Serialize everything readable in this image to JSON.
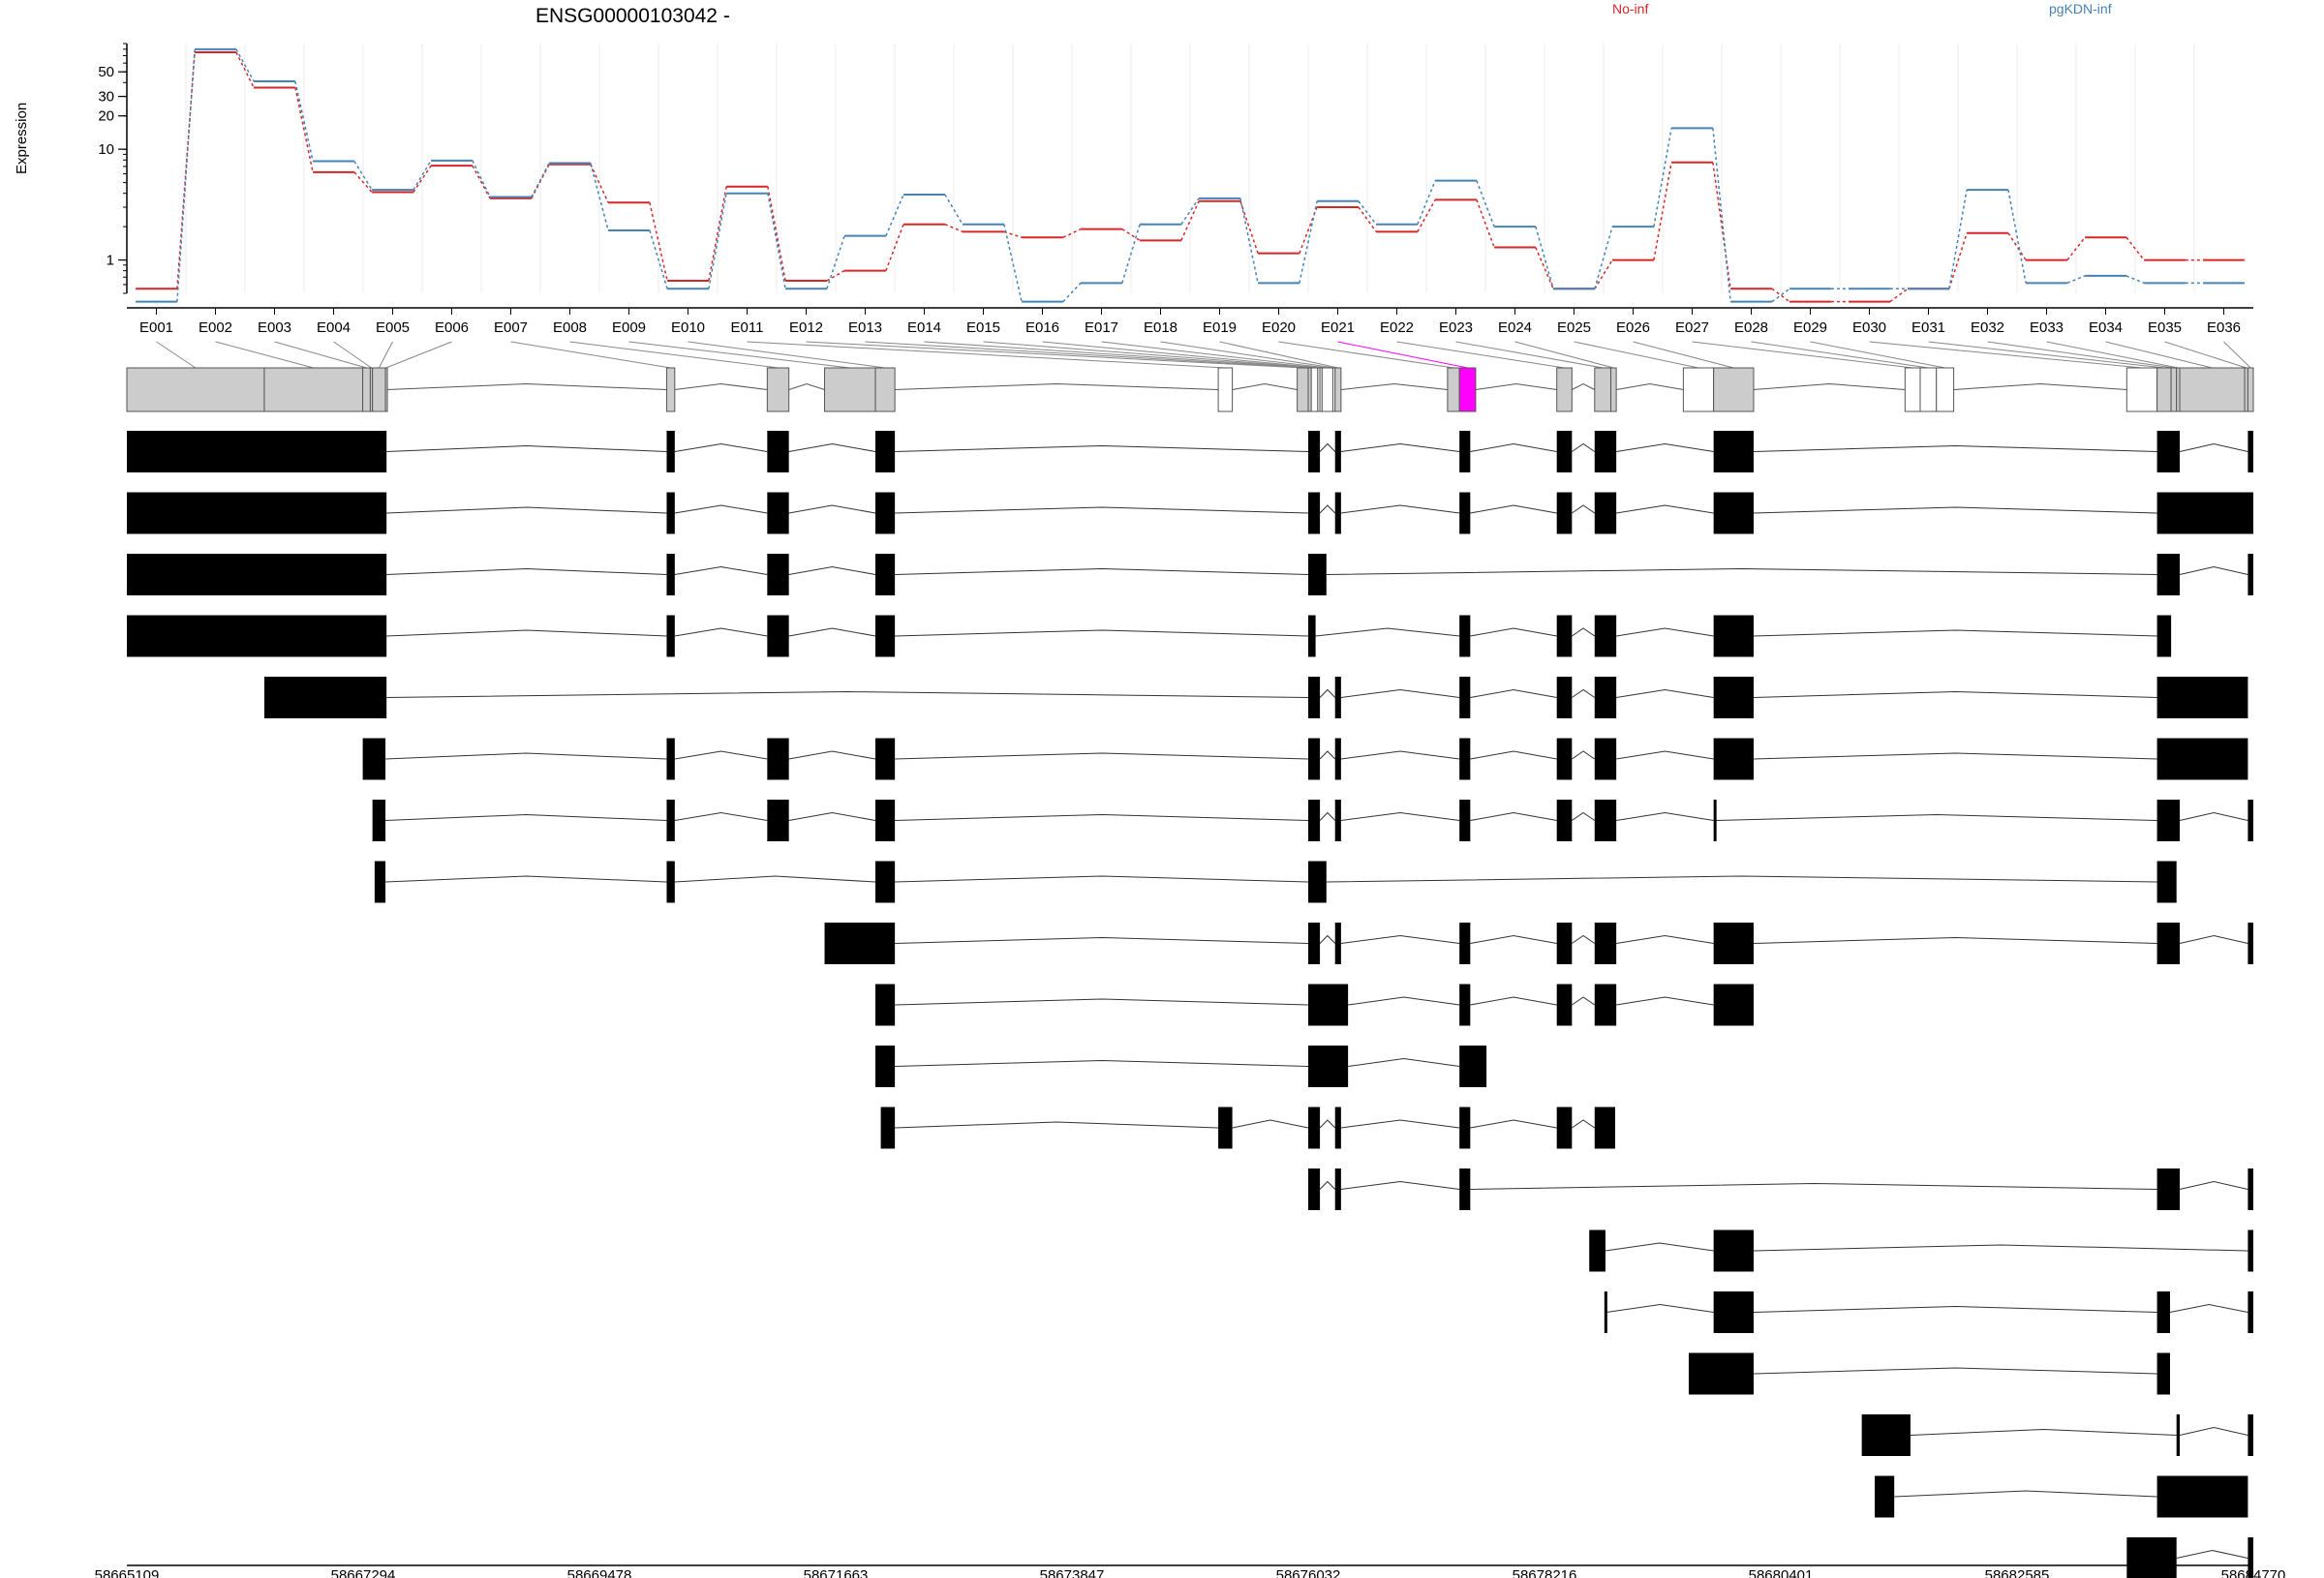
{
  "chart_data": {
    "type": "line",
    "title": "ENSG00000103042 -",
    "ylabel": "Expression",
    "xlabel": "",
    "y_scale": "log",
    "ylim": [
      0.5,
      90
    ],
    "y_ticks": [
      1,
      10,
      20,
      30,
      50
    ],
    "grid": "vertical",
    "legend_position": "top",
    "categories": [
      "E001",
      "E002",
      "E003",
      "E004",
      "E005",
      "E006",
      "E007",
      "E008",
      "E009",
      "E010",
      "E011",
      "E012",
      "E013",
      "E014",
      "E015",
      "E016",
      "E017",
      "E018",
      "E019",
      "E020",
      "E021",
      "E022",
      "E023",
      "E024",
      "E025",
      "E026",
      "E027",
      "E028",
      "E029",
      "E030",
      "E031",
      "E032",
      "E033",
      "E034",
      "E035",
      "E036"
    ],
    "series": [
      {
        "name": "No-inf",
        "color": "#d62728",
        "values": [
          0.55,
          75,
          36,
          6.2,
          4.1,
          7.1,
          3.6,
          7.3,
          3.3,
          0.65,
          4.6,
          0.65,
          0.8,
          2.1,
          1.8,
          1.6,
          1.9,
          1.5,
          3.4,
          1.15,
          3.0,
          1.8,
          3.5,
          1.3,
          0.55,
          1.0,
          7.6,
          0.55,
          0.42,
          0.42,
          0.55,
          1.75,
          1.0,
          1.6,
          1.0,
          1.0
        ]
      },
      {
        "name": "pgKDN-inf",
        "color": "#4682b4",
        "values": [
          0.42,
          80,
          41,
          7.8,
          4.3,
          7.9,
          3.7,
          7.5,
          1.85,
          0.55,
          4.0,
          0.55,
          1.65,
          3.9,
          2.1,
          0.42,
          0.62,
          2.1,
          3.6,
          0.62,
          3.4,
          2.1,
          5.2,
          2.0,
          0.55,
          2.0,
          15.5,
          0.42,
          0.55,
          0.55,
          0.55,
          4.3,
          0.62,
          0.72,
          0.62,
          0.62
        ]
      }
    ],
    "genomic_axis": {
      "range": [
        58665109,
        58684770
      ],
      "tick_labels": [
        "58665109",
        "58667294",
        "58669478",
        "58671663",
        "58673847",
        "58676032",
        "58678216",
        "58680401",
        "58682585",
        "58684770"
      ]
    },
    "exons": [
      {
        "id": "E001",
        "start": 58665109,
        "end": 58666380,
        "coding": true
      },
      {
        "id": "E002",
        "start": 58666380,
        "end": 58667290,
        "coding": true
      },
      {
        "id": "E003",
        "start": 58667290,
        "end": 58667360,
        "coding": true
      },
      {
        "id": "E004",
        "start": 58667360,
        "end": 58667380,
        "coding": true
      },
      {
        "id": "E005",
        "start": 58667380,
        "end": 58667500,
        "coding": true
      },
      {
        "id": "E006",
        "start": 58667500,
        "end": 58667510,
        "coding": true
      },
      {
        "id": "E007",
        "start": 58670100,
        "end": 58670175,
        "coding": true
      },
      {
        "id": "E008",
        "start": 58671030,
        "end": 58671230,
        "coding": true
      },
      {
        "id": "E009",
        "start": 58671560,
        "end": 58672030,
        "coding": true
      },
      {
        "id": "E010",
        "start": 58672030,
        "end": 58672210,
        "coding": true
      },
      {
        "id": "E011",
        "start": 58675200,
        "end": 58675330,
        "coding": false
      },
      {
        "id": "E012",
        "start": 58675930,
        "end": 58676032,
        "coding": true
      },
      {
        "id": "E013",
        "start": 58676032,
        "end": 58676060,
        "coding": true
      },
      {
        "id": "E014",
        "start": 58676060,
        "end": 58676120,
        "coding": false
      },
      {
        "id": "E015",
        "start": 58676120,
        "end": 58676140,
        "coding": false
      },
      {
        "id": "E016",
        "start": 58676140,
        "end": 58676160,
        "coding": false
      },
      {
        "id": "E017",
        "start": 58676160,
        "end": 58676260,
        "coding": false
      },
      {
        "id": "E018",
        "start": 58676260,
        "end": 58676280,
        "coding": false
      },
      {
        "id": "E019",
        "start": 58676280,
        "end": 58676335,
        "coding": true
      },
      {
        "id": "E020",
        "start": 58677320,
        "end": 58677430,
        "coding": true
      },
      {
        "id": "E021",
        "start": 58677430,
        "end": 58677580,
        "coding": true
      },
      {
        "id": "E022",
        "start": 58678330,
        "end": 58678470,
        "coding": true
      },
      {
        "id": "E023",
        "start": 58678680,
        "end": 58678830,
        "coding": true
      },
      {
        "id": "E024",
        "start": 58678830,
        "end": 58678880,
        "coding": true
      },
      {
        "id": "E025",
        "start": 58679500,
        "end": 58679780,
        "coding": false
      },
      {
        "id": "E026",
        "start": 58679780,
        "end": 58680150,
        "coding": true
      },
      {
        "id": "E027",
        "start": 58681550,
        "end": 58681690,
        "coding": false
      },
      {
        "id": "E028",
        "start": 58681690,
        "end": 58681840,
        "coding": false
      },
      {
        "id": "E029",
        "start": 58681840,
        "end": 58682000,
        "coding": false
      },
      {
        "id": "E030",
        "start": 58683600,
        "end": 58683880,
        "coding": false
      },
      {
        "id": "E031",
        "start": 58683880,
        "end": 58684010,
        "coding": true
      },
      {
        "id": "E032",
        "start": 58684010,
        "end": 58684060,
        "coding": true
      },
      {
        "id": "E033",
        "start": 58684060,
        "end": 58684090,
        "coding": true
      },
      {
        "id": "E034",
        "start": 58684090,
        "end": 58684690,
        "coding": true
      },
      {
        "id": "E035",
        "start": 58684690,
        "end": 58684720,
        "coding": true
      },
      {
        "id": "E036",
        "start": 58684720,
        "end": 58684770,
        "coding": true
      }
    ],
    "highlighted_exon": "E021",
    "highlight_color": "#ff00ff",
    "transcripts": [
      {
        "exons": [
          [
            58665109,
            58667510
          ],
          [
            58670100,
            58670175
          ],
          [
            58671030,
            58671230
          ],
          [
            58672030,
            58672210
          ],
          [
            58676032,
            58676140
          ],
          [
            58676280,
            58676335
          ],
          [
            58677430,
            58677530
          ],
          [
            58678330,
            58678470
          ],
          [
            58678680,
            58678880
          ],
          [
            58679780,
            58680150
          ],
          [
            58683880,
            58684090
          ],
          [
            58684720,
            58684770
          ]
        ]
      },
      {
        "exons": [
          [
            58665109,
            58667510
          ],
          [
            58670100,
            58670175
          ],
          [
            58671030,
            58671230
          ],
          [
            58672030,
            58672210
          ],
          [
            58676032,
            58676140
          ],
          [
            58676280,
            58676335
          ],
          [
            58677430,
            58677530
          ],
          [
            58678330,
            58678470
          ],
          [
            58678680,
            58678880
          ],
          [
            58679780,
            58680150
          ],
          [
            58683880,
            58684770
          ]
        ]
      },
      {
        "exons": [
          [
            58665109,
            58667510
          ],
          [
            58670100,
            58670175
          ],
          [
            58671030,
            58671230
          ],
          [
            58672030,
            58672210
          ],
          [
            58676032,
            58676200
          ],
          [
            58683880,
            58684090
          ],
          [
            58684720,
            58684770
          ]
        ]
      },
      {
        "exons": [
          [
            58665109,
            58667510
          ],
          [
            58670100,
            58670175
          ],
          [
            58671030,
            58671230
          ],
          [
            58672030,
            58672210
          ],
          [
            58676032,
            58676100
          ],
          [
            58677430,
            58677530
          ],
          [
            58678330,
            58678470
          ],
          [
            58678680,
            58678880
          ],
          [
            58679780,
            58680150
          ],
          [
            58683880,
            58684010
          ]
        ]
      },
      {
        "exons": [
          [
            58666380,
            58667510
          ],
          [
            58676032,
            58676140
          ],
          [
            58676280,
            58676335
          ],
          [
            58677430,
            58677530
          ],
          [
            58678330,
            58678470
          ],
          [
            58678680,
            58678880
          ],
          [
            58679780,
            58680150
          ],
          [
            58683880,
            58684720
          ]
        ]
      },
      {
        "exons": [
          [
            58667290,
            58667500
          ],
          [
            58670100,
            58670175
          ],
          [
            58671030,
            58671230
          ],
          [
            58672030,
            58672210
          ],
          [
            58676032,
            58676140
          ],
          [
            58676280,
            58676335
          ],
          [
            58677430,
            58677530
          ],
          [
            58678330,
            58678470
          ],
          [
            58678680,
            58678880
          ],
          [
            58679780,
            58680150
          ],
          [
            58683880,
            58684720
          ]
        ]
      },
      {
        "exons": [
          [
            58667380,
            58667500
          ],
          [
            58670100,
            58670175
          ],
          [
            58671030,
            58671230
          ],
          [
            58672030,
            58672210
          ],
          [
            58676032,
            58676140
          ],
          [
            58676280,
            58676335
          ],
          [
            58677430,
            58677530
          ],
          [
            58678330,
            58678470
          ],
          [
            58678680,
            58678880
          ],
          [
            58679780,
            58679800
          ],
          [
            58683880,
            58684090
          ],
          [
            58684720,
            58684770
          ]
        ]
      },
      {
        "exons": [
          [
            58667400,
            58667500
          ],
          [
            58670100,
            58670175
          ],
          [
            58672030,
            58672210
          ],
          [
            58676032,
            58676200
          ],
          [
            58683880,
            58684060
          ]
        ]
      },
      {
        "exons": [
          [
            58671560,
            58672210
          ],
          [
            58676032,
            58676140
          ],
          [
            58676280,
            58676335
          ],
          [
            58677430,
            58677530
          ],
          [
            58678330,
            58678470
          ],
          [
            58678680,
            58678880
          ],
          [
            58679780,
            58680150
          ],
          [
            58683880,
            58684090
          ],
          [
            58684720,
            58684770
          ]
        ]
      },
      {
        "exons": [
          [
            58672030,
            58672210
          ],
          [
            58676032,
            58676400
          ],
          [
            58677430,
            58677530
          ],
          [
            58678330,
            58678470
          ],
          [
            58678680,
            58678880
          ],
          [
            58679780,
            58680150
          ]
        ]
      },
      {
        "exons": [
          [
            58672030,
            58672210
          ],
          [
            58676032,
            58676400
          ],
          [
            58677430,
            58677680
          ]
        ]
      },
      {
        "exons": [
          [
            58672080,
            58672210
          ],
          [
            58675200,
            58675330
          ],
          [
            58676032,
            58676140
          ],
          [
            58676280,
            58676335
          ],
          [
            58677430,
            58677530
          ],
          [
            58678330,
            58678470
          ],
          [
            58678680,
            58678870
          ]
        ]
      },
      {
        "exons": [
          [
            58676032,
            58676140
          ],
          [
            58676280,
            58676335
          ],
          [
            58677430,
            58677530
          ],
          [
            58683880,
            58684090
          ],
          [
            58684720,
            58684770
          ]
        ]
      },
      {
        "exons": [
          [
            58678630,
            58678780
          ],
          [
            58679780,
            58680150
          ],
          [
            58684720,
            58684770
          ]
        ]
      },
      {
        "exons": [
          [
            58678770,
            58678790
          ],
          [
            58679780,
            58680150
          ],
          [
            58683880,
            58684000
          ],
          [
            58684720,
            58684770
          ]
        ]
      },
      {
        "exons": [
          [
            58679550,
            58680150
          ],
          [
            58683880,
            58684000
          ]
        ]
      },
      {
        "exons": [
          [
            58681150,
            58681600
          ],
          [
            58684060,
            58684090
          ],
          [
            58684720,
            58684770
          ]
        ]
      },
      {
        "exons": [
          [
            58681270,
            58681450
          ],
          [
            58683880,
            58684720
          ]
        ]
      },
      {
        "exons": [
          [
            58683600,
            58684060
          ],
          [
            58684720,
            58684770
          ]
        ]
      }
    ]
  }
}
